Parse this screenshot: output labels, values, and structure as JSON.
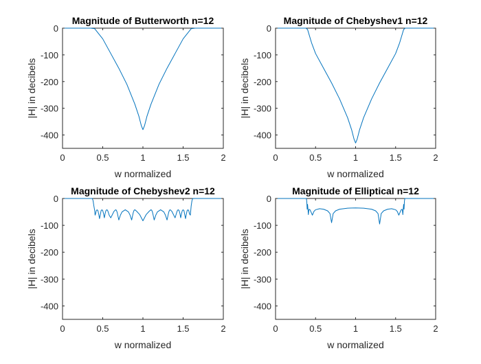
{
  "figure": {
    "background": "#ffffff"
  },
  "chart_data": [
    {
      "type": "line",
      "title": "Magnitude of Butterworth n=12",
      "xlabel": "w normalized",
      "ylabel": "|H| in decibels",
      "xlim": [
        0,
        2
      ],
      "ylim": [
        -450,
        0
      ],
      "xticks": [
        "0",
        "0.5",
        "1",
        "1.5",
        "2"
      ],
      "yticks": [
        "0",
        "-100",
        "-200",
        "-300",
        "-400"
      ],
      "color": "#0072bd",
      "grid": false,
      "series": [
        {
          "x": [
            0,
            0.35,
            0.4,
            0.5,
            0.6,
            0.7,
            0.8,
            0.9,
            0.95,
            0.98,
            1.0,
            1.02,
            1.05,
            1.1,
            1.2,
            1.3,
            1.4,
            1.5,
            1.6,
            1.65,
            2.0
          ],
          "values": [
            0,
            0,
            -2,
            -40,
            -95,
            -150,
            -210,
            -285,
            -330,
            -365,
            -380,
            -365,
            -330,
            -285,
            -210,
            -150,
            -95,
            -40,
            -2,
            0,
            0
          ]
        }
      ]
    },
    {
      "type": "line",
      "title": "Magnitude of Chebyshev1 n=12",
      "xlabel": "w normalized",
      "ylabel": "|H| in decibels",
      "xlim": [
        0,
        2
      ],
      "ylim": [
        -450,
        0
      ],
      "xticks": [
        "0",
        "0.5",
        "1",
        "1.5",
        "2"
      ],
      "yticks": [
        "0",
        "-100",
        "-200",
        "-300",
        "-400"
      ],
      "color": "#0072bd",
      "grid": false,
      "series": [
        {
          "x": [
            0,
            0.38,
            0.4,
            0.45,
            0.5,
            0.6,
            0.7,
            0.8,
            0.9,
            0.95,
            0.98,
            1.0,
            1.02,
            1.05,
            1.1,
            1.2,
            1.3,
            1.4,
            1.5,
            1.55,
            1.6,
            1.62,
            2.0
          ],
          "values": [
            0,
            0,
            -5,
            -55,
            -95,
            -150,
            -205,
            -265,
            -335,
            -380,
            -415,
            -430,
            -415,
            -380,
            -335,
            -265,
            -205,
            -150,
            -95,
            -55,
            -5,
            0,
            0
          ]
        }
      ]
    },
    {
      "type": "line",
      "title": "Magnitude of Chebyshev2 n=12",
      "xlabel": "w normalized",
      "ylabel": "|H| in decibels",
      "xlim": [
        0,
        2
      ],
      "ylim": [
        -450,
        0
      ],
      "xticks": [
        "0",
        "0.5",
        "1",
        "1.5",
        "2"
      ],
      "yticks": [
        "0",
        "-100",
        "-200",
        "-300",
        "-400"
      ],
      "color": "#0072bd",
      "grid": false,
      "series": [
        {
          "x": [
            0,
            0.37,
            0.38,
            0.39,
            0.4,
            0.405,
            0.41,
            0.42,
            0.43,
            0.44,
            0.45,
            0.46,
            0.47,
            0.48,
            0.49,
            0.5,
            0.51,
            0.52,
            0.53,
            0.54,
            0.55,
            0.56,
            0.57,
            0.58,
            0.6,
            0.62,
            0.64,
            0.66,
            0.67,
            0.68,
            0.69,
            0.7,
            0.72,
            0.74,
            0.78,
            0.82,
            0.84,
            0.86,
            0.87,
            0.88,
            0.89,
            0.9,
            0.92,
            0.96,
            1.0,
            1.04,
            1.08,
            1.1,
            1.11,
            1.12,
            1.13,
            1.14,
            1.16,
            1.18,
            1.22,
            1.26,
            1.28,
            1.3,
            1.31,
            1.32,
            1.33,
            1.34,
            1.36,
            1.38,
            1.4,
            1.41,
            1.42,
            1.43,
            1.44,
            1.45,
            1.46,
            1.47,
            1.48,
            1.49,
            1.5,
            1.51,
            1.52,
            1.53,
            1.54,
            1.55,
            1.56,
            1.57,
            1.58,
            1.59,
            1.595,
            1.6,
            1.61,
            1.62,
            1.63,
            2.0
          ],
          "values": [
            0,
            0,
            -8,
            -28,
            -45,
            -62,
            -58,
            -45,
            -42,
            -45,
            -58,
            -75,
            -60,
            -45,
            -42,
            -45,
            -56,
            -72,
            -56,
            -45,
            -42,
            -44,
            -52,
            -62,
            -72,
            -60,
            -48,
            -42,
            -44,
            -52,
            -66,
            -80,
            -62,
            -50,
            -42,
            -50,
            -62,
            -80,
            -66,
            -52,
            -44,
            -42,
            -47,
            -60,
            -83,
            -60,
            -47,
            -42,
            -44,
            -52,
            -66,
            -80,
            -62,
            -50,
            -42,
            -50,
            -62,
            -80,
            -66,
            -52,
            -44,
            -42,
            -48,
            -60,
            -72,
            -62,
            -52,
            -44,
            -42,
            -45,
            -56,
            -72,
            -56,
            -45,
            -42,
            -45,
            -60,
            -75,
            -58,
            -45,
            -42,
            -45,
            -58,
            -62,
            -45,
            -28,
            -8,
            0,
            0,
            0
          ]
        }
      ]
    },
    {
      "type": "line",
      "title": "Magnitude of Elliptical n=12",
      "xlabel": "w normalized",
      "ylabel": "|H| in decibels",
      "xlim": [
        0,
        2
      ],
      "ylim": [
        -450,
        0
      ],
      "xticks": [
        "0",
        "0.5",
        "1",
        "1.5",
        "2"
      ],
      "yticks": [
        "0",
        "-100",
        "-200",
        "-300",
        "-400"
      ],
      "color": "#0072bd",
      "grid": false,
      "series": [
        {
          "x": [
            0,
            0.385,
            0.39,
            0.395,
            0.4,
            0.405,
            0.41,
            0.415,
            0.42,
            0.43,
            0.44,
            0.46,
            0.48,
            0.5,
            0.55,
            0.6,
            0.65,
            0.68,
            0.7,
            0.72,
            0.75,
            0.8,
            0.9,
            1.0,
            1.1,
            1.2,
            1.25,
            1.28,
            1.3,
            1.32,
            1.35,
            1.4,
            1.45,
            1.5,
            1.52,
            1.54,
            1.56,
            1.57,
            1.58,
            1.585,
            1.59,
            1.595,
            1.6,
            1.605,
            1.61,
            1.615,
            2.0
          ],
          "values": [
            0,
            0,
            -10,
            -40,
            -22,
            -40,
            -60,
            -45,
            -40,
            -42,
            -48,
            -62,
            -48,
            -42,
            -38,
            -40,
            -46,
            -56,
            -90,
            -56,
            -46,
            -40,
            -36,
            -35,
            -36,
            -40,
            -46,
            -56,
            -95,
            -56,
            -46,
            -40,
            -38,
            -42,
            -48,
            -62,
            -48,
            -42,
            -40,
            -45,
            -60,
            -40,
            -22,
            -40,
            -10,
            0,
            0
          ]
        }
      ]
    }
  ]
}
